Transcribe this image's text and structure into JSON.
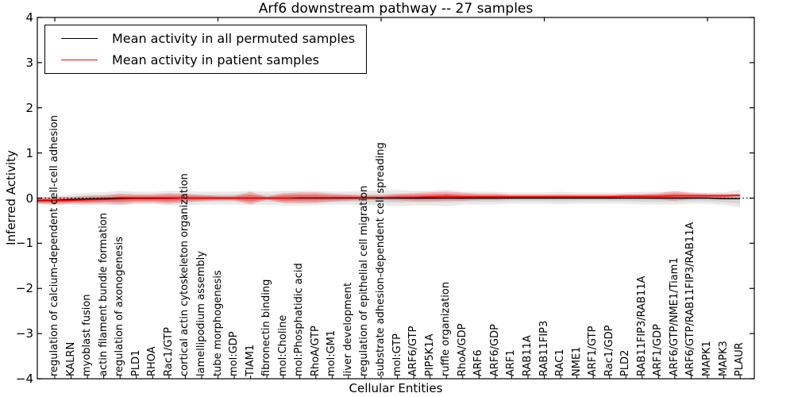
{
  "chart_data": {
    "type": "line",
    "title": "Arf6 downstream pathway -- 27 samples",
    "xlabel": "Cellular Entities",
    "ylabel": "Inferred Activity",
    "ylim": [
      -4,
      4
    ],
    "yticks": [
      "4",
      "3",
      "2",
      "1",
      "0",
      "−1",
      "−2",
      "−3",
      "−4"
    ],
    "ytick_values": [
      4,
      3,
      2,
      1,
      0,
      -1,
      -2,
      -3,
      -4
    ],
    "grid": false,
    "legend_position": "upper left",
    "zero_line_style": "dotted",
    "categories": [
      "regulation of calcium-dependent cell-cell adhesion",
      "KALRN",
      "myoblast fusion",
      "actin filament bundle formation",
      "regulation of axonogenesis",
      "PLD1",
      "RHOA",
      "Rac1/GTP",
      "cortical actin cytoskeleton organization",
      "lamellipodium assembly",
      "tube morphogenesis",
      "mol:GDP",
      "TIAM1",
      "fibronectin binding",
      "mol:Choline",
      "mol:Phosphatidic acid",
      "RhoA/GTP",
      "mol:GM1",
      "liver development",
      "regulation of epithelial cell migration",
      "substrate adhesion-dependent cell spreading",
      "mol:GTP",
      "ARF6/GTP",
      "PIP5K1A",
      "ruffle organization",
      "RhoA/GDP",
      "ARF6",
      "ARF6/GDP",
      "ARF1",
      "RAB11A",
      "RAB11FIP3",
      "RAC1",
      "NME1",
      "ARF1/GTP",
      "Rac1/GDP",
      "PLD2",
      "RAB11FIP3/RAB11A",
      "ARF1/GDP",
      "ARF6/GTP/NME1/Tiam1",
      "ARF6/GTP/RAB11FIP3/RAB11A",
      "MAPK1",
      "MAPK3",
      "PLAUR"
    ],
    "series": [
      {
        "name": "Mean activity in all permuted samples",
        "color": "#000000",
        "band_color": "#999999",
        "band_opacity": 0.22,
        "mean": [
          -0.05,
          -0.03,
          -0.02,
          -0.01,
          0,
          0,
          0,
          0,
          0,
          0,
          0,
          0,
          0,
          0,
          0,
          0,
          0,
          0,
          0,
          0,
          0,
          0,
          0,
          0,
          0,
          0,
          0,
          0,
          0,
          0,
          0,
          0,
          0,
          0,
          0,
          0,
          0,
          0,
          0,
          0,
          0,
          -0.01,
          -0.01
        ],
        "band": [
          0.09,
          0.12,
          0.14,
          0.14,
          0.16,
          0.14,
          0.14,
          0.16,
          0.16,
          0.14,
          0.14,
          0.14,
          0.16,
          0.14,
          0.16,
          0.16,
          0.16,
          0.14,
          0.14,
          0.16,
          0.16,
          0.18,
          0.16,
          0.16,
          0.18,
          0.14,
          0.14,
          0.14,
          0.12,
          0.12,
          0.12,
          0.14,
          0.12,
          0.12,
          0.12,
          0.12,
          0.14,
          0.14,
          0.14,
          0.12,
          0.12,
          0.14,
          0.19
        ]
      },
      {
        "name": "Mean activity in patient samples",
        "color": "#ff0000",
        "band_color": "#ff0000",
        "band_opacity": 0.22,
        "mean": [
          -0.06,
          -0.05,
          -0.04,
          -0.03,
          -0.02,
          -0.01,
          -0.01,
          -0.01,
          0,
          0,
          0,
          0,
          0,
          0,
          0,
          0.01,
          0.01,
          0.01,
          0.01,
          0.01,
          0.01,
          0.02,
          0.02,
          0.03,
          0.04,
          0.03,
          0.03,
          0.03,
          0.03,
          0.03,
          0.03,
          0.03,
          0.03,
          0.03,
          0.03,
          0.04,
          0.04,
          0.04,
          0.05,
          0.05,
          0.05,
          0.05,
          0.06
        ],
        "band": [
          0.09,
          0.07,
          0.09,
          0.09,
          0.12,
          0.09,
          0.09,
          0.12,
          0.09,
          0.07,
          0.05,
          0.05,
          0.14,
          0.03,
          0.11,
          0.12,
          0.12,
          0.09,
          0.07,
          0.05,
          0.05,
          0.07,
          0.09,
          0.1,
          0.1,
          0.09,
          0.07,
          0.07,
          0.05,
          0.05,
          0.05,
          0.05,
          0.05,
          0.05,
          0.05,
          0.05,
          0.05,
          0.07,
          0.11,
          0.07,
          0.05,
          0.05,
          0.03
        ]
      }
    ]
  },
  "legend": {
    "items": [
      {
        "label": "Mean activity in all permuted samples",
        "color": "#000000"
      },
      {
        "label": "Mean activity in patient samples",
        "color": "#ff0000"
      }
    ]
  }
}
